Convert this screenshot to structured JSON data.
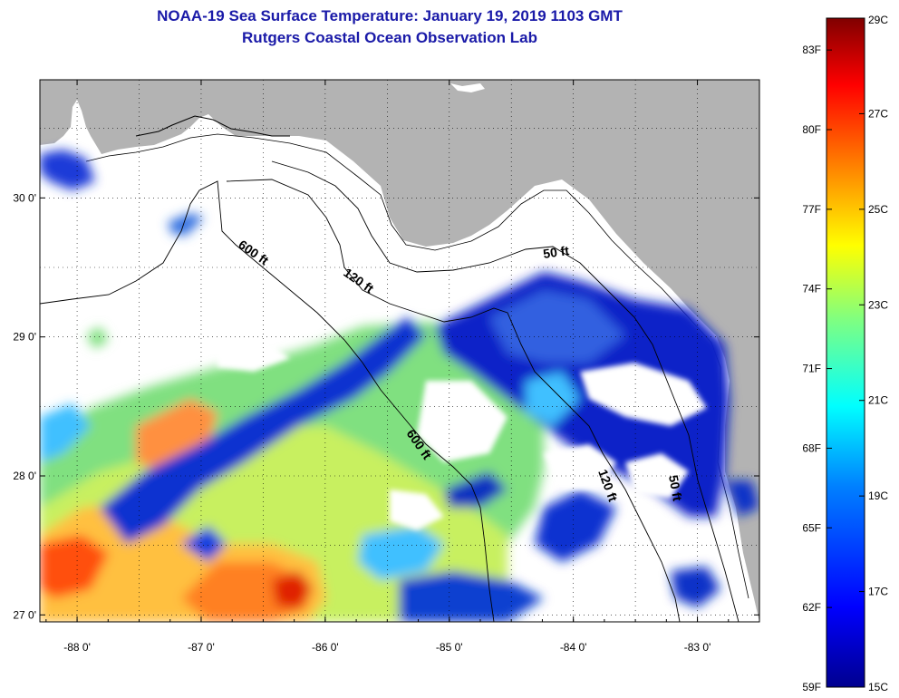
{
  "title": "NOAA-19 Sea Surface Temperature:  January 19, 2019 1103 GMT",
  "subtitle": "Rutgers Coastal Ocean Observation Lab",
  "map": {
    "lat_ticks": [
      "30 0'",
      "29 0'",
      "28 0'",
      "27 0'"
    ],
    "lon_ticks": [
      "-88 0'",
      "-87 0'",
      "-86 0'",
      "-85 0'",
      "-84 0'",
      "-83 0'"
    ],
    "lon_range": [
      -88.3,
      -82.5
    ],
    "lat_range": [
      26.95,
      30.85
    ],
    "grid": true,
    "contour_labels": [
      "600 ft",
      "120 ft",
      "50 ft",
      "600 ft",
      "120 ft",
      "50 ft"
    ]
  },
  "colorbar": {
    "fahrenheit_labels": [
      "83F",
      "80F",
      "77F",
      "74F",
      "71F",
      "68F",
      "65F",
      "62F",
      "59F"
    ],
    "celsius_labels": [
      "29C",
      "27C",
      "25C",
      "23C",
      "21C",
      "19C",
      "17C",
      "15C"
    ],
    "colors": [
      "#00008f",
      "#0000ff",
      "#0080ff",
      "#00ffff",
      "#80ff80",
      "#ffff00",
      "#ff8000",
      "#ff0000",
      "#800000"
    ]
  },
  "colors": {
    "land": "#b3b3b3",
    "title": "#1a1aa8"
  }
}
